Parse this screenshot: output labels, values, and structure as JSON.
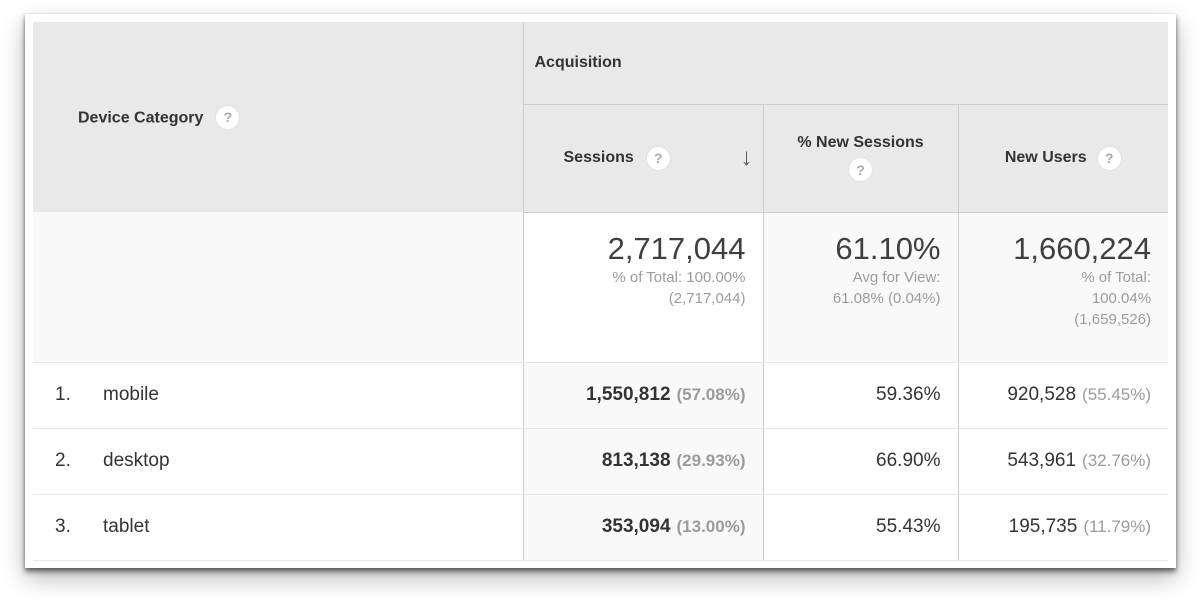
{
  "icons": {
    "help": "?",
    "sort_desc": "↓"
  },
  "colors": {
    "header_bg": "#e9e9e9",
    "summary_bg": "#f9f9f9",
    "sorted_column_bg": "#f9f9f9",
    "column_border": "#cccccc",
    "row_border": "#e6e6e6",
    "text": "#333333",
    "muted_text": "#9b9b9b"
  },
  "header": {
    "dimension_label": "Device Category",
    "group_label": "Acquisition",
    "metrics": {
      "sessions": "Sessions",
      "percent_new_sessions": "% New Sessions",
      "new_users": "New Users"
    }
  },
  "summary": {
    "sessions": {
      "value": "2,717,044",
      "sub1": "% of Total: 100.00%",
      "sub2": "(2,717,044)"
    },
    "percent_new_sessions": {
      "value": "61.10%",
      "sub1": "Avg for View:",
      "sub2": "61.08% (0.04%)"
    },
    "new_users": {
      "value": "1,660,224",
      "sub1": "% of Total:",
      "sub2": "100.04%",
      "sub3": "(1,659,526)"
    }
  },
  "rows": [
    {
      "rank": "1.",
      "device": "mobile",
      "sessions": "1,550,812",
      "sessions_share": "(57.08%)",
      "percent_new_sessions": "59.36%",
      "new_users": "920,528",
      "new_users_share": "(55.45%)"
    },
    {
      "rank": "2.",
      "device": "desktop",
      "sessions": "813,138",
      "sessions_share": "(29.93%)",
      "percent_new_sessions": "66.90%",
      "new_users": "543,961",
      "new_users_share": "(32.76%)"
    },
    {
      "rank": "3.",
      "device": "tablet",
      "sessions": "353,094",
      "sessions_share": "(13.00%)",
      "percent_new_sessions": "55.43%",
      "new_users": "195,735",
      "new_users_share": "(11.79%)"
    }
  ]
}
